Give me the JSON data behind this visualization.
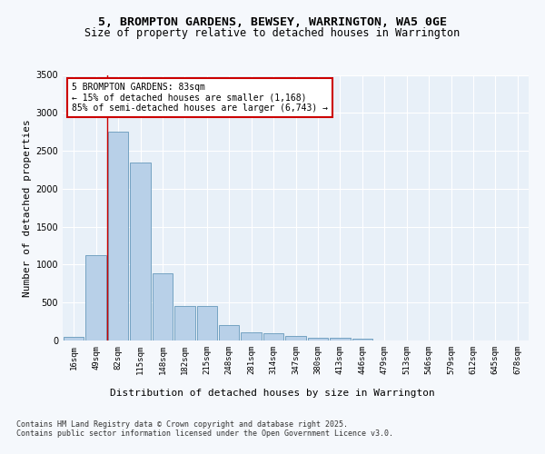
{
  "title_line1": "5, BROMPTON GARDENS, BEWSEY, WARRINGTON, WA5 0GE",
  "title_line2": "Size of property relative to detached houses in Warrington",
  "xlabel": "Distribution of detached houses by size in Warrington",
  "ylabel": "Number of detached properties",
  "categories": [
    "16sqm",
    "49sqm",
    "82sqm",
    "115sqm",
    "148sqm",
    "182sqm",
    "215sqm",
    "248sqm",
    "281sqm",
    "314sqm",
    "347sqm",
    "380sqm",
    "413sqm",
    "446sqm",
    "479sqm",
    "513sqm",
    "546sqm",
    "579sqm",
    "612sqm",
    "645sqm",
    "678sqm"
  ],
  "values": [
    50,
    1130,
    2750,
    2340,
    880,
    450,
    450,
    200,
    110,
    100,
    65,
    35,
    35,
    20,
    0,
    0,
    0,
    0,
    0,
    0,
    0
  ],
  "bar_color": "#b8d0e8",
  "bar_edge_color": "#6699bb",
  "vline_color": "#cc0000",
  "annotation_text": "5 BROMPTON GARDENS: 83sqm\n← 15% of detached houses are smaller (1,168)\n85% of semi-detached houses are larger (6,743) →",
  "annotation_box_color": "#ffffff",
  "annotation_box_edge": "#cc0000",
  "ylim": [
    0,
    3500
  ],
  "yticks": [
    0,
    500,
    1000,
    1500,
    2000,
    2500,
    3000,
    3500
  ],
  "background_color": "#dce8f4",
  "plot_bg_color": "#e8f0f8",
  "grid_color": "#ffffff",
  "fig_bg_color": "#f5f8fc",
  "footnote": "Contains HM Land Registry data © Crown copyright and database right 2025.\nContains public sector information licensed under the Open Government Licence v3.0.",
  "title_fontsize": 9.5,
  "subtitle_fontsize": 8.5,
  "axis_label_fontsize": 8,
  "tick_fontsize": 6.5,
  "annotation_fontsize": 7,
  "footnote_fontsize": 6
}
